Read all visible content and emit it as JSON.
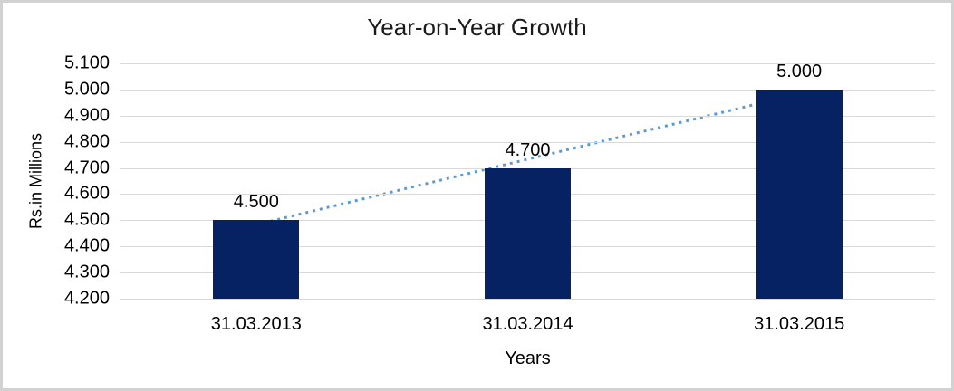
{
  "chart_data": {
    "type": "bar",
    "title": "Year-on-Year Growth",
    "xlabel": "Years",
    "ylabel": "Rs.in Millions",
    "categories": [
      "31.03.2013",
      "31.03.2014",
      "31.03.2015"
    ],
    "values": [
      4500,
      4700,
      5000
    ],
    "data_labels": [
      "4.500",
      "4.700",
      "5.000"
    ],
    "ylim": [
      4200,
      5100
    ],
    "ytick_values": [
      5100,
      5000,
      4900,
      4800,
      4700,
      4600,
      4500,
      4400,
      4300,
      4200
    ],
    "ytick_labels": [
      "5.100",
      "5.000",
      "4.900",
      "4.800",
      "4.700",
      "4.600",
      "4.500",
      "4.400",
      "4.300",
      "4.200"
    ],
    "grid": true,
    "legend": "none",
    "trendline": {
      "type": "linear",
      "style": "dotted",
      "fitted_values": [
        4483.3,
        4733.3,
        4983.3
      ]
    },
    "colors": {
      "bar": "#062263",
      "trendline": "#5b9bd5",
      "gridline": "#d9d9d9",
      "frame": "#d2d2d2",
      "text": "#000000"
    }
  }
}
